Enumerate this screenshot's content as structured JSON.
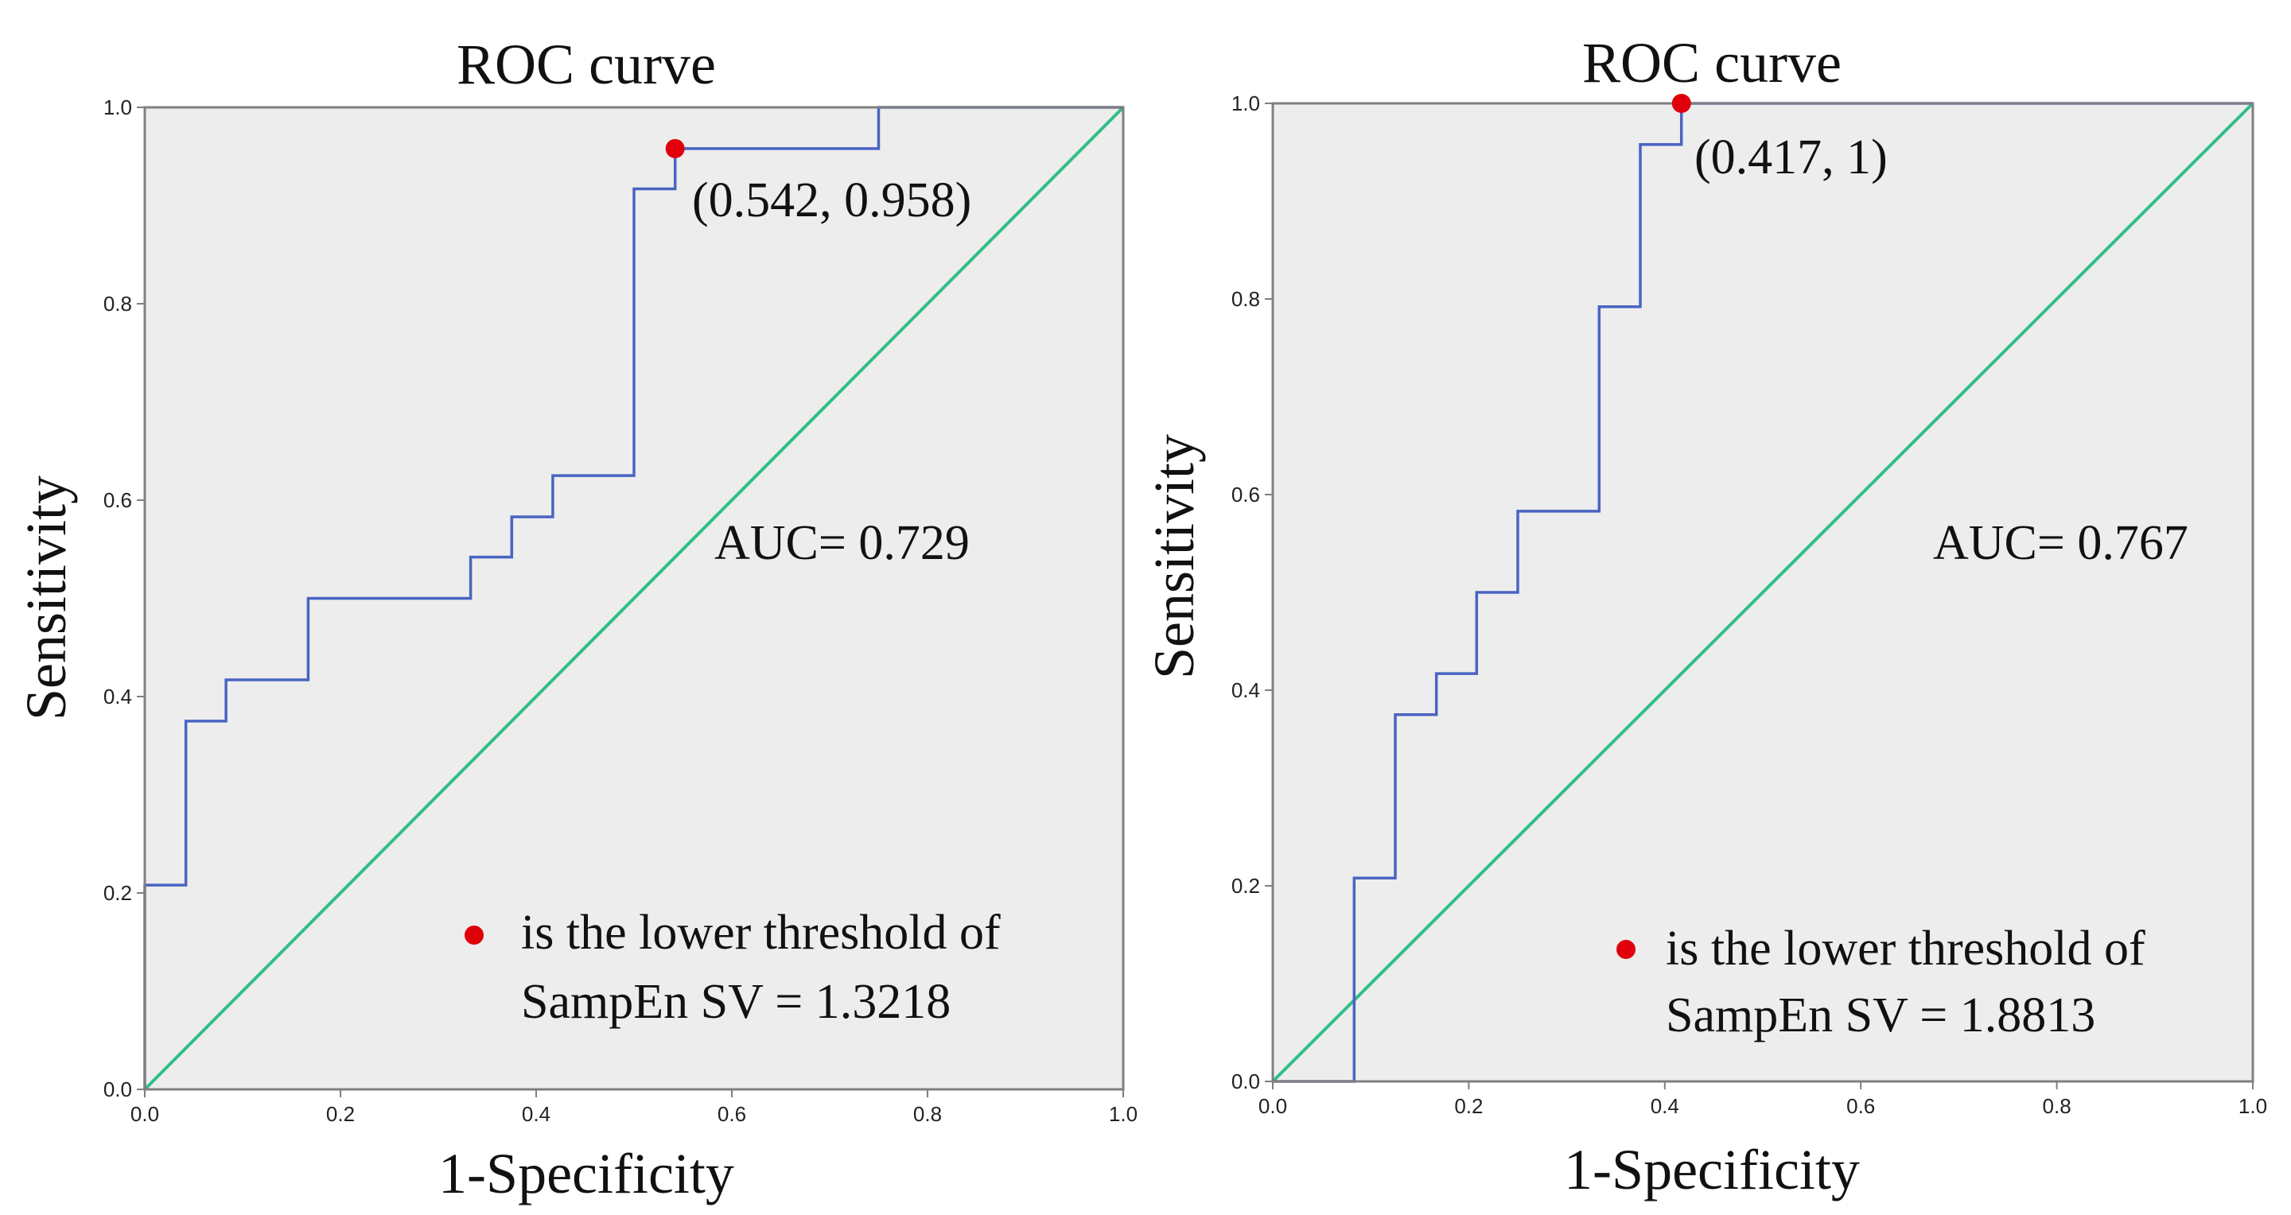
{
  "colors": {
    "plot_background": "#ededed",
    "frame": "#7f7f7f",
    "roc_line": "#4a64c2",
    "reference_line": "#2fbf86",
    "marker": "#e0000b"
  },
  "chart_data": [
    {
      "type": "line",
      "title": "ROC curve",
      "xlabel": "1-Specificity",
      "ylabel": "Sensitivity",
      "xlim": [
        0,
        1
      ],
      "ylim": [
        0,
        1
      ],
      "xticks": [
        "0.0",
        "0.2",
        "0.4",
        "0.6",
        "0.8",
        "1.0"
      ],
      "yticks": [
        "0.0",
        "0.2",
        "0.4",
        "0.6",
        "0.8",
        "1.0"
      ],
      "series": [
        {
          "name": "ROC",
          "x": [
            0,
            0,
            0.042,
            0.042,
            0.083,
            0.083,
            0.167,
            0.167,
            0.333,
            0.333,
            0.375,
            0.375,
            0.417,
            0.417,
            0.5,
            0.5,
            0.542,
            0.542,
            0.75,
            0.75,
            1.0
          ],
          "y": [
            0,
            0.208,
            0.208,
            0.375,
            0.375,
            0.417,
            0.417,
            0.5,
            0.5,
            0.542,
            0.542,
            0.583,
            0.583,
            0.625,
            0.625,
            0.917,
            0.917,
            0.958,
            0.958,
            1.0,
            1.0
          ]
        },
        {
          "name": "Reference",
          "x": [
            0,
            1
          ],
          "y": [
            0,
            1
          ]
        }
      ],
      "marker": {
        "x": 0.542,
        "y": 0.958
      },
      "annotations": {
        "point_label": "(0.542, 0.958)",
        "auc": "AUC= 0.729",
        "legend_line1": "is the lower threshold of",
        "legend_line2": "SampEn SV = 1.3218"
      }
    },
    {
      "type": "line",
      "title": "ROC curve",
      "xlabel": "1-Specificity",
      "ylabel": "Sensitivity",
      "xlim": [
        0,
        1
      ],
      "ylim": [
        0,
        1
      ],
      "xticks": [
        "0.0",
        "0.2",
        "0.4",
        "0.6",
        "0.8",
        "1.0"
      ],
      "yticks": [
        "0.0",
        "0.2",
        "0.4",
        "0.6",
        "0.8",
        "1.0"
      ],
      "series": [
        {
          "name": "ROC",
          "x": [
            0,
            0.083,
            0.083,
            0.125,
            0.125,
            0.167,
            0.167,
            0.208,
            0.208,
            0.25,
            0.25,
            0.333,
            0.333,
            0.375,
            0.375,
            0.417,
            0.417,
            1.0
          ],
          "y": [
            0,
            0,
            0.208,
            0.208,
            0.375,
            0.375,
            0.417,
            0.417,
            0.5,
            0.5,
            0.583,
            0.583,
            0.792,
            0.792,
            0.958,
            0.958,
            1.0,
            1.0
          ]
        },
        {
          "name": "Reference",
          "x": [
            0,
            1
          ],
          "y": [
            0,
            1
          ]
        }
      ],
      "marker": {
        "x": 0.417,
        "y": 1.0
      },
      "annotations": {
        "point_label": "(0.417, 1)",
        "auc": "AUC= 0.767",
        "legend_line1": "is the lower threshold of",
        "legend_line2": "SampEn SV = 1.8813"
      }
    }
  ]
}
